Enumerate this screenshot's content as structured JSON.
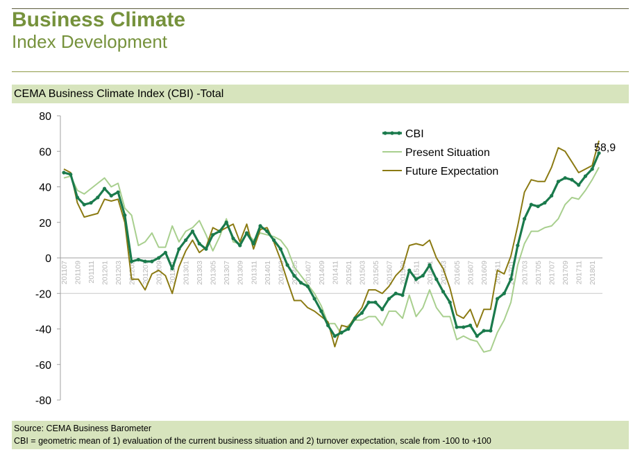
{
  "header": {
    "title": "Business Climate",
    "subtitle": "Index Development"
  },
  "panel_title": "CEMA Business Climate Index (CBI) -Total",
  "footer": {
    "source": "Source: CEMA Business Barometer",
    "note": "CBI = geometric mean of 1) evaluation of the current business situation and 2) turnover expectation, scale from -100 to +100"
  },
  "chart_data": {
    "type": "line",
    "title": "CEMA Business Climate Index (CBI) -Total",
    "ylim": [
      -80,
      80
    ],
    "yticks": [
      80,
      60,
      40,
      20,
      0,
      -20,
      -40,
      -60,
      -80
    ],
    "grid": "horizontal at -20",
    "legend_position": "top-right",
    "x": [
      "201107",
      "201108",
      "201109",
      "201110",
      "201111",
      "201112",
      "201201",
      "201202",
      "201203",
      "201204",
      "201205",
      "201206",
      "201207",
      "201208",
      "201209",
      "201210",
      "201211",
      "201212",
      "201301",
      "201302",
      "201303",
      "201304",
      "201305",
      "201306",
      "201307",
      "201308",
      "201309",
      "201310",
      "201311",
      "201312",
      "201401",
      "201402",
      "201403",
      "201404",
      "201405",
      "201406",
      "201407",
      "201408",
      "201409",
      "201410",
      "201411",
      "201412",
      "201501",
      "201502",
      "201503",
      "201504",
      "201505",
      "201506",
      "201507",
      "201508",
      "201509",
      "201510",
      "201511",
      "201512",
      "201601",
      "201602",
      "201603",
      "201604",
      "201605",
      "201606",
      "201607",
      "201608",
      "201609",
      "201610",
      "201611",
      "201612",
      "201701",
      "201702",
      "201703",
      "201704",
      "201705",
      "201706",
      "201707",
      "201708",
      "201709",
      "201710",
      "201711",
      "201712",
      "201801",
      "201802"
    ],
    "x_tick_labels": [
      "201107",
      "201109",
      "201111",
      "201201",
      "201203",
      "201205",
      "201207",
      "201209",
      "201211",
      "201301",
      "201303",
      "201305",
      "201307",
      "201309",
      "201311",
      "201401",
      "201403",
      "201405",
      "201407",
      "201409",
      "201411",
      "201501",
      "201503",
      "201505",
      "201507",
      "201509",
      "201511",
      "201601",
      "201603",
      "201605",
      "201607",
      "201609",
      "201611",
      "201701",
      "201703",
      "201705",
      "201707",
      "201709",
      "201711",
      "201801"
    ],
    "series": [
      {
        "name": "CBI",
        "color": "#1a7a4c",
        "markers": true,
        "values": [
          48,
          47,
          34,
          30,
          31,
          34,
          39,
          35,
          37,
          24,
          -2,
          -1,
          -2,
          -2,
          0,
          3,
          -6,
          5,
          10,
          15,
          8,
          5,
          13,
          15,
          20,
          11,
          7,
          14,
          8,
          18,
          15,
          10,
          5,
          -4,
          -10,
          -14,
          -16,
          -23,
          -30,
          -38,
          -44,
          -42,
          -40,
          -34,
          -31,
          -25,
          -25,
          -29,
          -23,
          -20,
          -21,
          -7,
          -12,
          -10,
          -4,
          -12,
          -19,
          -25,
          -39,
          -39,
          -38,
          -44,
          -41,
          -41,
          -23,
          -20,
          -12,
          7,
          22,
          30,
          29,
          31,
          35,
          43,
          45,
          44,
          41,
          46,
          50,
          59
        ]
      },
      {
        "name": "Present Situation",
        "color": "#a8cf8e",
        "markers": false,
        "values": [
          45,
          46,
          38,
          36,
          39,
          42,
          45,
          40,
          42,
          28,
          24,
          7,
          9,
          14,
          6,
          6,
          18,
          9,
          15,
          17,
          21,
          13,
          4,
          12,
          22,
          9,
          8,
          14,
          10,
          14,
          13,
          12,
          10,
          5,
          -5,
          -10,
          -15,
          -20,
          -27,
          -37,
          -37,
          -43,
          -38,
          -35,
          -35,
          -33,
          -33,
          -38,
          -30,
          -30,
          -34,
          -21,
          -33,
          -28,
          -18,
          -28,
          -33,
          -33,
          -46,
          -44,
          -46,
          -47,
          -53,
          -52,
          -42,
          -35,
          -25,
          -4,
          8,
          15,
          15,
          17,
          18,
          22,
          30,
          34,
          33,
          38,
          44,
          51
        ]
      },
      {
        "name": "Future Expectation",
        "color": "#8b7a12",
        "markers": false,
        "values": [
          50,
          48,
          31,
          23,
          24,
          25,
          33,
          32,
          33,
          20,
          -12,
          -12,
          -18,
          -9,
          -7,
          -10,
          -20,
          -5,
          4,
          10,
          3,
          6,
          17,
          15,
          17,
          19,
          9,
          19,
          5,
          16,
          17,
          9,
          -1,
          -13,
          -24,
          -24,
          -28,
          -30,
          -33,
          -36,
          -50,
          -38,
          -39,
          -33,
          -28,
          -18,
          -18,
          -20,
          -16,
          -10,
          -6,
          7,
          8,
          7,
          10,
          0,
          -6,
          -17,
          -32,
          -34,
          -29,
          -39,
          -29,
          -29,
          -7,
          -9,
          1,
          18,
          37,
          44,
          43,
          43,
          51,
          62,
          60,
          54,
          48,
          50,
          52,
          66
        ]
      }
    ],
    "annotations": [
      {
        "text": "58,9"
      }
    ]
  }
}
